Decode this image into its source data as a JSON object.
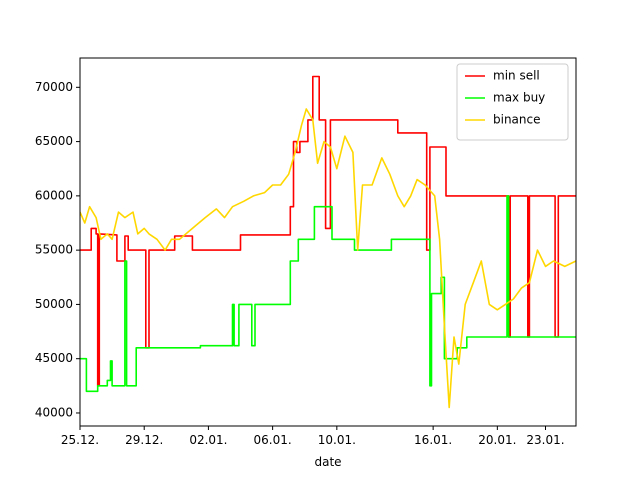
{
  "chart_data": {
    "type": "line",
    "x_label": "date",
    "xlim": [
      0,
      30.9
    ],
    "xticks": [
      {
        "value": 0,
        "label": "25.12."
      },
      {
        "value": 4,
        "label": "29.12."
      },
      {
        "value": 8,
        "label": "02.01."
      },
      {
        "value": 12,
        "label": "06.01."
      },
      {
        "value": 16,
        "label": "10.01."
      },
      {
        "value": 22,
        "label": "16.01."
      },
      {
        "value": 26,
        "label": "20.01."
      },
      {
        "value": 29,
        "label": "23.01."
      }
    ],
    "ylim": [
      38800,
      72700
    ],
    "yticks": [
      40000,
      45000,
      50000,
      55000,
      60000,
      65000,
      70000
    ],
    "legend": "upper right",
    "series": [
      {
        "name": "min sell",
        "color": "#ff0000",
        "x": [
          0,
          0.7,
          0.7,
          1.0,
          1.0,
          1.1,
          1.1,
          1.2,
          1.2,
          2.3,
          2.3,
          2.8,
          2.8,
          3.0,
          3.0,
          4.1,
          4.1,
          4.3,
          4.3,
          5.9,
          5.9,
          7.0,
          7.0,
          10.0,
          10.0,
          13.1,
          13.1,
          13.3,
          13.3,
          13.5,
          13.5,
          13.7,
          13.7,
          14.2,
          14.2,
          14.5,
          14.5,
          14.9,
          14.9,
          15.3,
          15.3,
          15.6,
          15.6,
          19.8,
          19.8,
          21.6,
          21.6,
          21.8,
          21.8,
          22.8,
          22.8,
          26.7,
          26.7,
          26.8,
          26.8,
          27.9,
          27.9,
          28.0,
          28.0,
          29.6,
          29.6,
          29.8,
          29.8,
          30.9
        ],
        "values": [
          55000,
          55000,
          57000,
          57000,
          56500,
          56500,
          42500,
          42500,
          56500,
          56400,
          54000,
          54000,
          56300,
          56300,
          55000,
          55000,
          46000,
          46000,
          55000,
          55000,
          56300,
          56300,
          55000,
          55000,
          56400,
          56400,
          59000,
          59000,
          65000,
          65000,
          64000,
          64000,
          65000,
          65000,
          67000,
          67000,
          71000,
          71000,
          67000,
          67000,
          57000,
          57000,
          67000,
          67000,
          65800,
          65800,
          55000,
          55000,
          64500,
          64500,
          60000,
          60000,
          47000,
          47000,
          60000,
          60000,
          47000,
          47000,
          60000,
          60000,
          47000,
          47000,
          60000,
          60000
        ]
      },
      {
        "name": "max buy",
        "color": "#00ff00",
        "x": [
          0,
          0.4,
          0.4,
          1.1,
          1.1,
          1.7,
          1.7,
          1.9,
          1.9,
          2.0,
          2.0,
          2.8,
          2.8,
          2.9,
          2.9,
          3.5,
          3.5,
          7.5,
          7.5,
          9.5,
          9.5,
          9.6,
          9.6,
          9.9,
          9.9,
          10.7,
          10.7,
          10.9,
          10.9,
          13.1,
          13.1,
          13.6,
          13.6,
          14.6,
          14.6,
          15.7,
          15.7,
          17.1,
          17.1,
          19.4,
          19.4,
          21.8,
          21.8,
          21.9,
          21.9,
          22.5,
          22.5,
          22.7,
          22.7,
          23.5,
          23.5,
          24.1,
          24.1,
          26.6,
          26.6,
          26.7,
          26.7,
          30.9
        ],
        "values": [
          45000,
          45000,
          42000,
          42000,
          42500,
          42500,
          43000,
          43000,
          44800,
          44800,
          42500,
          42500,
          54000,
          54000,
          42500,
          42500,
          46000,
          46000,
          46200,
          46200,
          50000,
          50000,
          46200,
          46200,
          50000,
          50000,
          46200,
          46200,
          50000,
          50000,
          54000,
          54000,
          56000,
          56000,
          59000,
          59000,
          56000,
          56000,
          55000,
          55000,
          56000,
          56000,
          42500,
          42500,
          51000,
          51000,
          52500,
          52500,
          45000,
          45000,
          46000,
          46000,
          47000,
          47000,
          60000,
          60000,
          47000,
          47000
        ]
      },
      {
        "name": "binance",
        "color": "#ffd700",
        "x": [
          0,
          0.3,
          0.6,
          1,
          1.3,
          1.7,
          2,
          2.4,
          2.8,
          3.3,
          3.6,
          4,
          4.3,
          4.8,
          5.3,
          5.7,
          6.2,
          7,
          7.8,
          8.5,
          9,
          9.5,
          10.2,
          10.8,
          11.5,
          12,
          12.5,
          13,
          13.4,
          13.8,
          14.1,
          14.5,
          14.8,
          15.2,
          15.6,
          16,
          16.5,
          17,
          17.3,
          17.6,
          18.2,
          18.8,
          19.3,
          19.8,
          20.2,
          20.6,
          21,
          21.5,
          22.1,
          22.4,
          22.7,
          23,
          23.3,
          23.6,
          24,
          24.5,
          25,
          25.5,
          26,
          26.5,
          27,
          27.5,
          28,
          28.5,
          29,
          29.5,
          30.2,
          30.9
        ],
        "values": [
          58500,
          57500,
          59000,
          58000,
          56000,
          56500,
          56000,
          58500,
          58000,
          58500,
          56500,
          57000,
          56500,
          56000,
          55000,
          56000,
          56000,
          57000,
          58000,
          58800,
          58000,
          59000,
          59500,
          60000,
          60300,
          61000,
          61000,
          62000,
          64000,
          66500,
          68000,
          67000,
          63000,
          65000,
          64500,
          62500,
          65500,
          64000,
          55000,
          61000,
          61000,
          63500,
          62000,
          60000,
          59000,
          60000,
          61500,
          61000,
          60000,
          56000,
          48000,
          40500,
          47000,
          44500,
          50000,
          52000,
          54000,
          50000,
          49500,
          50000,
          50500,
          51500,
          52000,
          55000,
          53500,
          54000,
          53500,
          54000
        ]
      }
    ]
  }
}
